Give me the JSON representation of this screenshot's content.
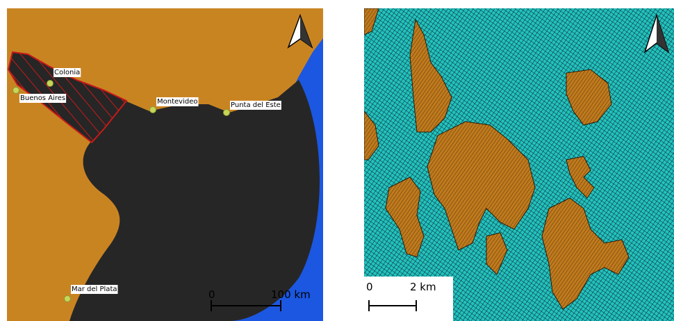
{
  "left_map": {
    "cities": [
      {
        "label": "Colonia"
      },
      {
        "label": "Buenos Aires"
      },
      {
        "label": "Montevideo"
      },
      {
        "label": "Punta del Este"
      },
      {
        "label": "Mar del Plata"
      }
    ],
    "scale_bar": {
      "start": "0",
      "end": "100 km"
    }
  },
  "right_map": {
    "scale_bar": {
      "start": "0",
      "end": "2 km"
    }
  }
}
